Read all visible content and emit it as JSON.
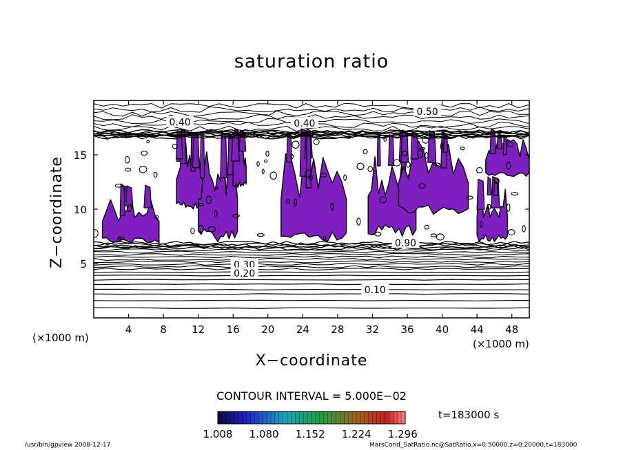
{
  "chart_data": {
    "type": "heatmap",
    "title": "saturation ratio",
    "xlabel": "X−coordinate",
    "ylabel": "Z−coordinate",
    "x_unit_label": "(×1000 m)",
    "y_unit_label": "(×1000 m)",
    "xlim": [
      0,
      50
    ],
    "ylim": [
      0,
      20
    ],
    "x_ticks": [
      4,
      8,
      12,
      16,
      20,
      24,
      28,
      32,
      36,
      40,
      44,
      48
    ],
    "y_ticks": [
      5,
      10,
      15
    ],
    "contour_interval": "CONTOUR INTERVAL = 5.000E−02",
    "contour_labels": [
      {
        "text": "0.50",
        "x": 38.3,
        "z": 19.0
      },
      {
        "text": "0.40",
        "x": 9.9,
        "z": 18.0
      },
      {
        "text": "0.40",
        "x": 24.2,
        "z": 17.9
      },
      {
        "text": "0.30",
        "x": 17.3,
        "z": 4.9
      },
      {
        "text": "0.20",
        "x": 17.3,
        "z": 4.1
      },
      {
        "text": "0.10",
        "x": 32.3,
        "z": 2.6
      },
      {
        "text": "0.90",
        "x": 35.8,
        "z": 6.9
      }
    ],
    "colorbar": {
      "ticks": [
        "1.008",
        "1.080",
        "1.152",
        "1.224",
        "1.296"
      ],
      "min": 1.008,
      "max": 1.3
    },
    "time_label": "t=183000 s",
    "supersaturated_regions": [
      {
        "x": [
          1.0,
          7.5
        ],
        "z": [
          6.8,
          12.0
        ]
      },
      {
        "x": [
          9.5,
          12.5
        ],
        "z": [
          10.0,
          16.8
        ]
      },
      {
        "x": [
          12.0,
          16.5
        ],
        "z": [
          7.0,
          16.8
        ]
      },
      {
        "x": [
          16.0,
          17.5
        ],
        "z": [
          12.0,
          16.8
        ]
      },
      {
        "x": [
          21.5,
          29.0
        ],
        "z": [
          7.0,
          16.8
        ]
      },
      {
        "x": [
          31.5,
          37.0
        ],
        "z": [
          7.5,
          16.8
        ]
      },
      {
        "x": [
          35.0,
          43.0
        ],
        "z": [
          9.5,
          16.8
        ]
      },
      {
        "x": [
          44.0,
          47.5
        ],
        "z": [
          7.0,
          12.5
        ]
      },
      {
        "x": [
          45.0,
          50.0
        ],
        "z": [
          13.0,
          16.8
        ]
      }
    ],
    "colors": {
      "supersaturation": "#7f1fbf",
      "contour": "#000000",
      "background": "#ffffff"
    }
  },
  "footer": {
    "left": "/usr/bin/gpview   2008-12-17",
    "right": "MarsCond_SatRatio.nc@SatRatio,x=0:50000,z=0:20000,t=183000"
  }
}
